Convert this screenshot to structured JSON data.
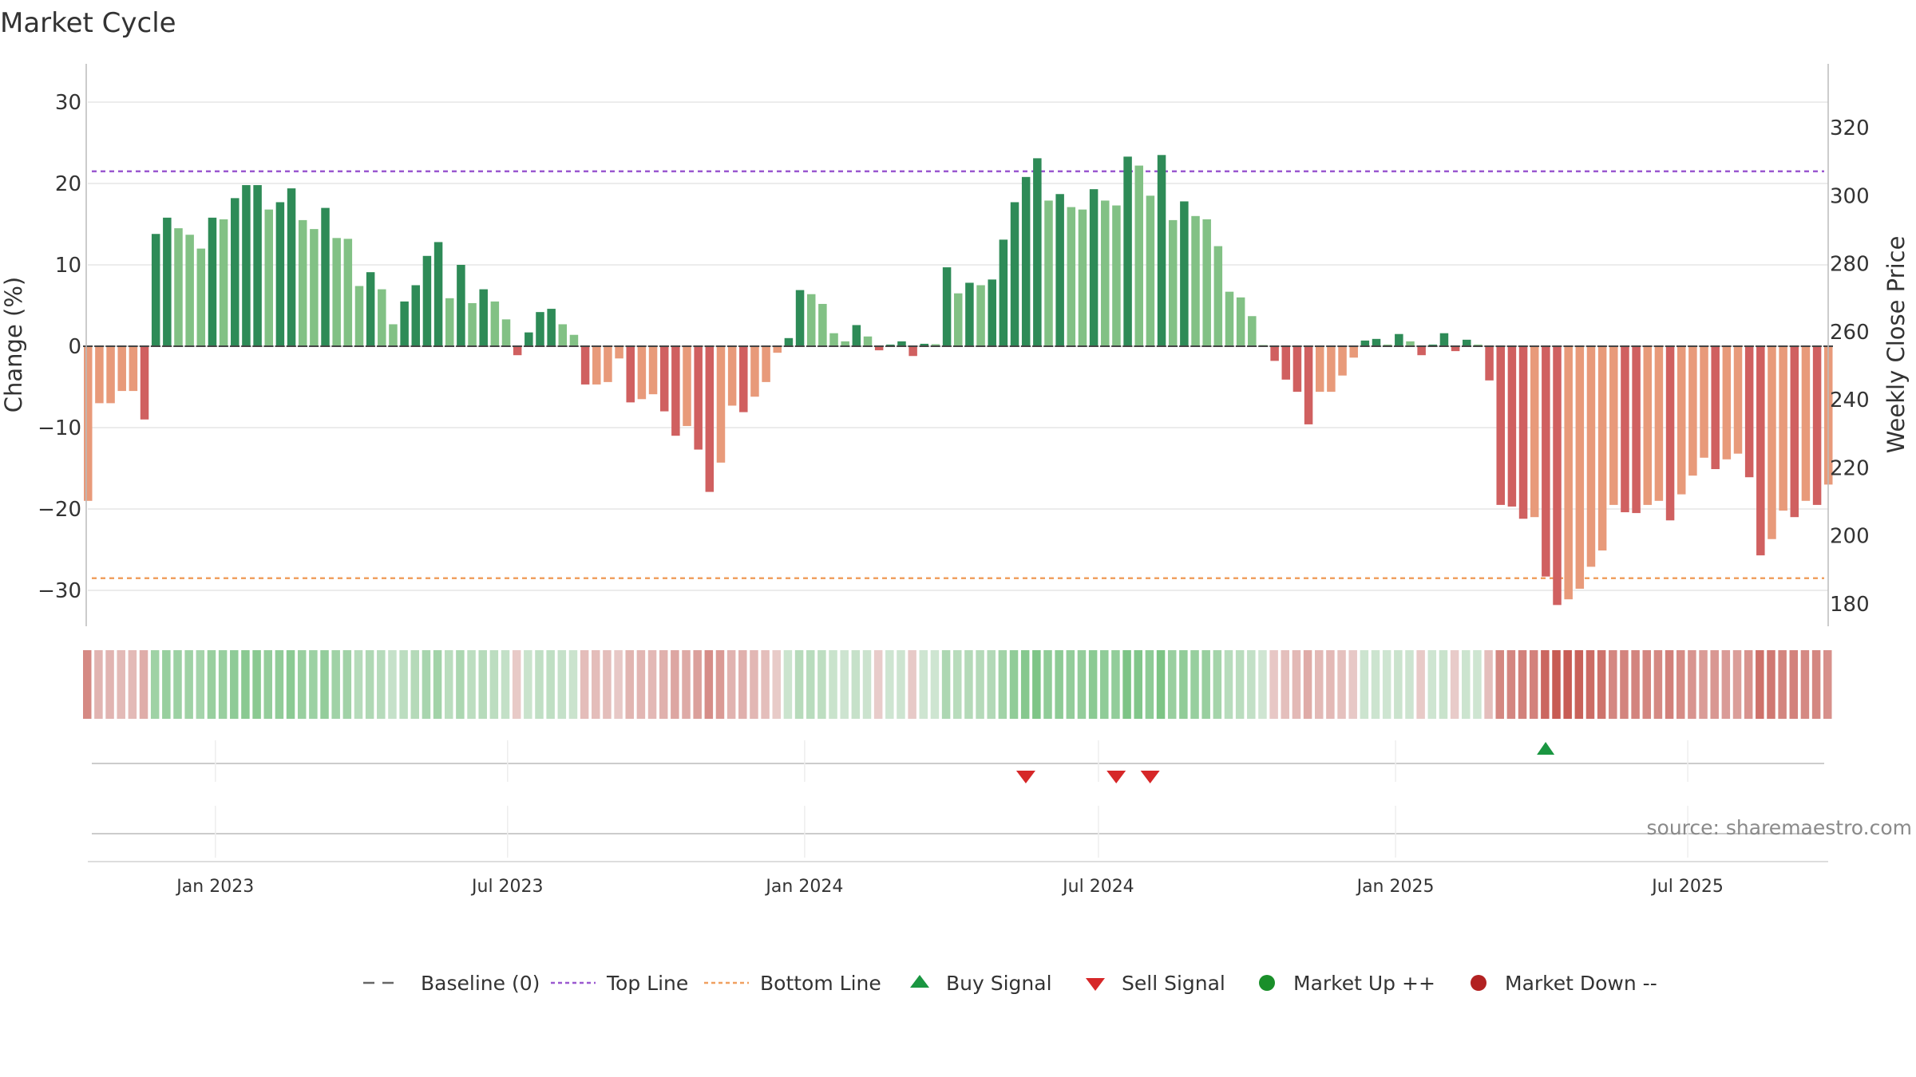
{
  "chart_data": {
    "type": "bar",
    "title": "Market Cycle",
    "ylabel": "Change (%)",
    "y2label": "Weekly Close Price",
    "ylim": [
      -35,
      35
    ],
    "y2lim": [
      173,
      341
    ],
    "yticks": [
      30,
      20,
      10,
      0,
      -10,
      -20,
      -30
    ],
    "y2ticks": [
      320,
      300,
      280,
      260,
      240,
      220,
      200,
      180
    ],
    "xrange": [
      "2022-10-14",
      "2025-09-26"
    ],
    "xticks": [
      {
        "date": "2023-01-01",
        "label": "Jan 2023"
      },
      {
        "date": "2023-07-01",
        "label": "Jul 2023"
      },
      {
        "date": "2024-01-01",
        "label": "Jan 2024"
      },
      {
        "date": "2024-07-01",
        "label": "Jul 2024"
      },
      {
        "date": "2025-01-01",
        "label": "Jan 2025"
      },
      {
        "date": "2025-07-01",
        "label": "Jul 2025"
      }
    ],
    "top_line": 21.5,
    "bottom_line": -28.5,
    "grid": true,
    "legend_position": "bottom-center",
    "series": [
      {
        "start_date": "2022-10-14",
        "interval_days": 7,
        "values": [
          -19,
          -7,
          -7,
          -5.5,
          -5.5,
          -9,
          13.8,
          15.8,
          14.5,
          13.7,
          12,
          15.8,
          15.6,
          18.2,
          19.8,
          19.8,
          16.8,
          17.7,
          19.4,
          15.5,
          14.4,
          17,
          13.3,
          13.2,
          7.4,
          9.1,
          7,
          2.7,
          5.5,
          7.5,
          11.1,
          12.8,
          5.9,
          10,
          5.3,
          7,
          5.5,
          3.3,
          -1.1,
          1.7,
          4.2,
          4.6,
          2.7,
          1.4,
          -4.7,
          -4.7,
          -4.4,
          -1.5,
          -6.9,
          -6.5,
          -5.9,
          -8,
          -11,
          -9.8,
          -12.7,
          -17.9,
          -14.3,
          -7.3,
          -8.1,
          -6.2,
          -4.4,
          -0.8,
          1,
          6.9,
          6.4,
          5.2,
          1.6,
          0.6,
          2.6,
          1.2,
          -0.5,
          0.2,
          0.6,
          -1.2,
          0.3,
          0.1,
          9.7,
          6.5,
          7.8,
          7.5,
          8.2,
          13.1,
          17.7,
          20.8,
          23.1,
          17.9,
          18.7,
          17.1,
          16.8,
          19.3,
          17.9,
          17.3,
          23.3,
          22.2,
          18.5,
          23.5,
          15.5,
          17.8,
          16,
          15.6,
          12.3,
          6.7,
          6,
          3.7,
          0,
          -1.8,
          -4.1,
          -5.6,
          -9.6,
          -5.6,
          -5.6,
          -3.6,
          -1.4,
          0.7,
          0.9,
          0.2,
          1.5,
          0.6,
          -1.1,
          0.2,
          1.6,
          -0.6,
          0.8,
          0.2,
          -4.2,
          -19.5,
          -19.7,
          -21.2,
          -21,
          -28.3,
          -31.8,
          -31.1,
          -29.8,
          -27.1,
          -25.1,
          -19.5,
          -20.4,
          -20.5,
          -19.5,
          -19,
          -21.4,
          -18.2,
          -15.9,
          -13.7,
          -15.1,
          -13.9,
          -13.2,
          -16.1,
          -25.7,
          -23.7,
          -20.2,
          -21,
          -19,
          -19.5,
          -17
        ]
      }
    ],
    "signals": [
      {
        "type": "buy",
        "date": "2025-04-04"
      },
      {
        "type": "sell",
        "date": "2024-05-17"
      },
      {
        "type": "sell",
        "date": "2024-07-12"
      },
      {
        "type": "sell",
        "date": "2024-08-02"
      }
    ],
    "source": "source: sharemaestro.com",
    "legend": [
      {
        "label": "Baseline (0)",
        "kind": "dash",
        "color": "#666666"
      },
      {
        "label": "Top Line",
        "kind": "dotted",
        "color": "#9b59d0"
      },
      {
        "label": "Bottom Line",
        "kind": "dotted",
        "color": "#f0a060"
      },
      {
        "label": "Buy Signal",
        "kind": "tri-up",
        "color": "#1a9641"
      },
      {
        "label": "Sell Signal",
        "kind": "tri-down",
        "color": "#d62728"
      },
      {
        "label": "Market Up ++",
        "kind": "dot",
        "color": "#1a8f2a"
      },
      {
        "label": "Market Down --",
        "kind": "dot",
        "color": "#b22222"
      }
    ],
    "colors": {
      "up_dark": "#2e8b57",
      "up_light": "#82c185",
      "down_dark": "#d06060",
      "down_light": "#e89a7a",
      "strip_up": "#5fb86a",
      "strip_down": "#c75a52",
      "baseline": "#444444"
    }
  }
}
